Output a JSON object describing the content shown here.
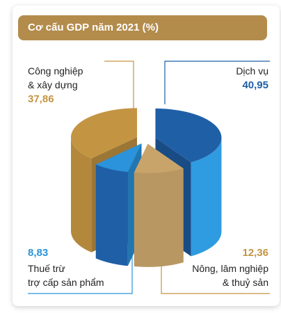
{
  "chart_data": {
    "type": "pie",
    "title": "Cơ cấu GDP năm 2021 (%)",
    "categories": [
      "Dịch vụ",
      "Nông, lâm nghiệp\n& thuỷ sản",
      "Thuế trừ\ntrợ cấp sản phẩm",
      "Công nghiệp\n& xây dựng"
    ],
    "values": [
      40.95,
      12.36,
      8.83,
      37.86
    ],
    "value_labels": [
      "40,95",
      "12,36",
      "8,83",
      "37,86"
    ],
    "colors": [
      "#1f5fa6",
      "#c9a46a",
      "#2a93dc",
      "#c39442"
    ]
  }
}
